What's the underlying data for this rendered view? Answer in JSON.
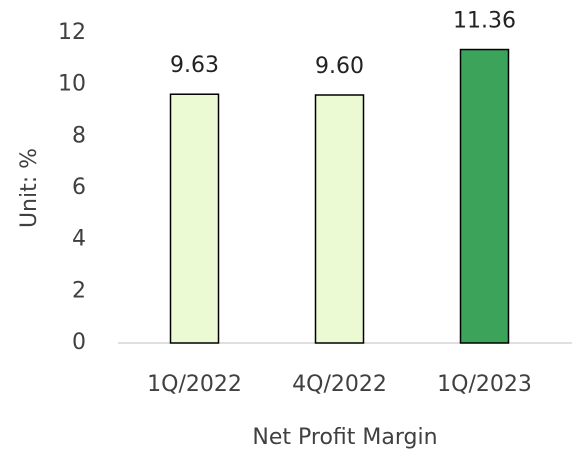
{
  "chart_data": {
    "type": "bar",
    "x_label": "Net Profit Margin",
    "y_label": "Unit: %",
    "categories": [
      "1Q/2022",
      "4Q/2022",
      "1Q/2023"
    ],
    "values": [
      9.63,
      9.6,
      11.36
    ],
    "value_labels": [
      "9.63",
      "9.60",
      "11.36"
    ],
    "colors": [
      "#ebfad2",
      "#ebfad2",
      "#3ca35a"
    ],
    "ylim": [
      0,
      12
    ],
    "yticks": [
      0,
      2,
      4,
      6,
      8,
      10,
      12
    ],
    "grid": false
  }
}
